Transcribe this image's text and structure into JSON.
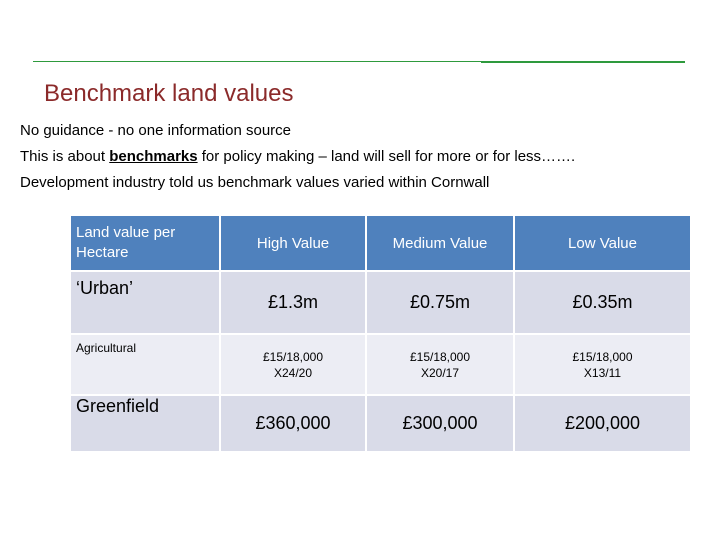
{
  "slide": {
    "title": "Benchmark land values",
    "intro": {
      "line1": "No guidance -  no one information source",
      "line2_before": "This is about ",
      "line2_bold": "benchmarks",
      "line2_after": " for policy making – land will sell for more or for less…….",
      "line3": "Development industry told us benchmark values varied within Cornwall"
    }
  },
  "table": {
    "headers": [
      "Land value per Hectare",
      "High Value",
      "Medium Value",
      "Low Value"
    ],
    "rows": [
      {
        "label": "‘Urban’",
        "high": "£1.3m",
        "medium": "£0.75m",
        "low": "£0.35m"
      },
      {
        "label": "Agricultural",
        "high": "£15/18,000",
        "high_sub": "X24/20",
        "medium": "£15/18,000",
        "medium_sub": "X20/17",
        "low": "£15/18,000",
        "low_sub": "X13/11"
      },
      {
        "label": "Greenfield",
        "high": "£360,000",
        "medium": "£300,000",
        "low": "£200,000"
      }
    ]
  }
}
